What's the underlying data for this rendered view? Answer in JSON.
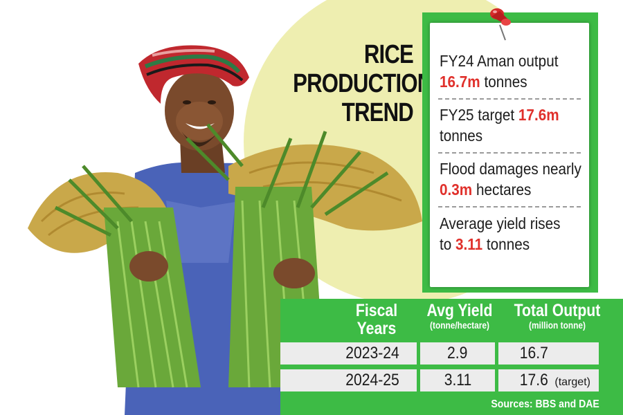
{
  "title": {
    "line1": "RICE",
    "line2": "PRODUCTION",
    "line3": "TREND"
  },
  "facts": [
    {
      "pre": "FY24 Aman output",
      "highlight": "16.7m",
      "post": " tonnes"
    },
    {
      "pre": "FY25 target ",
      "highlight": "17.6m",
      "post": "tonnes"
    },
    {
      "pre": "Flood damages nearly",
      "highlight": "0.3m",
      "post": " hectares"
    },
    {
      "pre": "Average yield rises",
      "pre2": "to ",
      "highlight": "3.11",
      "post": " tonnes"
    }
  ],
  "table": {
    "headers": [
      {
        "main1": "Fiscal",
        "main2": "Years"
      },
      {
        "main": "Avg Yield",
        "sub": "(tonne/hectare)"
      },
      {
        "main": "Total Output",
        "sub": "(million tonne)"
      }
    ],
    "rows": [
      {
        "year": "2023-24",
        "yield": "2.9",
        "output": "16.7",
        "note": ""
      },
      {
        "year": "2024-25",
        "yield": "3.11",
        "output": "17.6",
        "note": "(target)"
      }
    ],
    "source": "Sources: BBS and DAE"
  },
  "colors": {
    "green": "#3dbb45",
    "highlight": "#e0302b",
    "sun": "#eeeeb0",
    "cell": "#ececec"
  }
}
